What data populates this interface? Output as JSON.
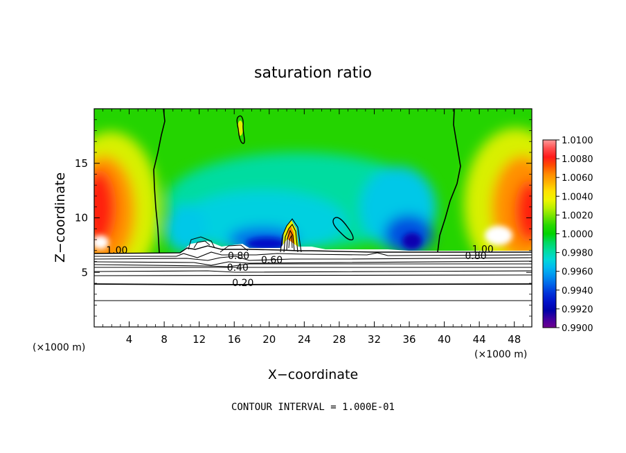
{
  "chart_data": {
    "type": "contour",
    "title": "saturation ratio",
    "xlabel": "X−coordinate",
    "ylabel": "Z−coordinate",
    "x_units": "(×1000 m)",
    "y_units": "(×1000 m)",
    "xlim": [
      0,
      50
    ],
    "ylim": [
      0,
      20
    ],
    "x_ticks": [
      4,
      8,
      12,
      16,
      20,
      24,
      28,
      32,
      36,
      40,
      44,
      48
    ],
    "x_tick_labels": [
      "4",
      "8",
      "12",
      "16",
      "20",
      "24",
      "28",
      "32",
      "36",
      "40",
      "44",
      "48"
    ],
    "y_ticks": [
      5,
      10,
      15
    ],
    "y_tick_labels": [
      "5",
      "10",
      "15"
    ],
    "colorbar": {
      "range": [
        0.99,
        1.01
      ],
      "labels": [
        "1.0100",
        "1.0080",
        "1.0060",
        "1.0040",
        "1.0020",
        "1.0000",
        "0.9980",
        "0.9960",
        "0.9940",
        "0.9920",
        "0.9900"
      ],
      "colors": [
        "#ff9a9a",
        "#ff4f4f",
        "#ff1a1a",
        "#ff4d00",
        "#ff8a00",
        "#ffb300",
        "#ffe100",
        "#f0f500",
        "#b8f000",
        "#70e400",
        "#28d800",
        "#00d400",
        "#00d860",
        "#00dca0",
        "#00d8d8",
        "#00b8f0",
        "#0090f0",
        "#0060e8",
        "#0030d8",
        "#0010c8",
        "#0000a8",
        "#4000a0",
        "#700090"
      ]
    },
    "contour_labels": [
      {
        "text": "1.00",
        "x": 2.6,
        "z": 6.8
      },
      {
        "text": "0.80",
        "x": 16.5,
        "z": 6.3
      },
      {
        "text": "0.60",
        "x": 20.3,
        "z": 5.9
      },
      {
        "text": "0.40",
        "x": 16.4,
        "z": 5.2
      },
      {
        "text": "0.20",
        "x": 17.0,
        "z": 3.8
      },
      {
        "text": "1.00",
        "x": 44.4,
        "z": 6.9
      },
      {
        "text": "0.80",
        "x": 43.6,
        "z": 6.3
      }
    ],
    "footnote": "CONTOUR INTERVAL = 1.000E-01"
  }
}
